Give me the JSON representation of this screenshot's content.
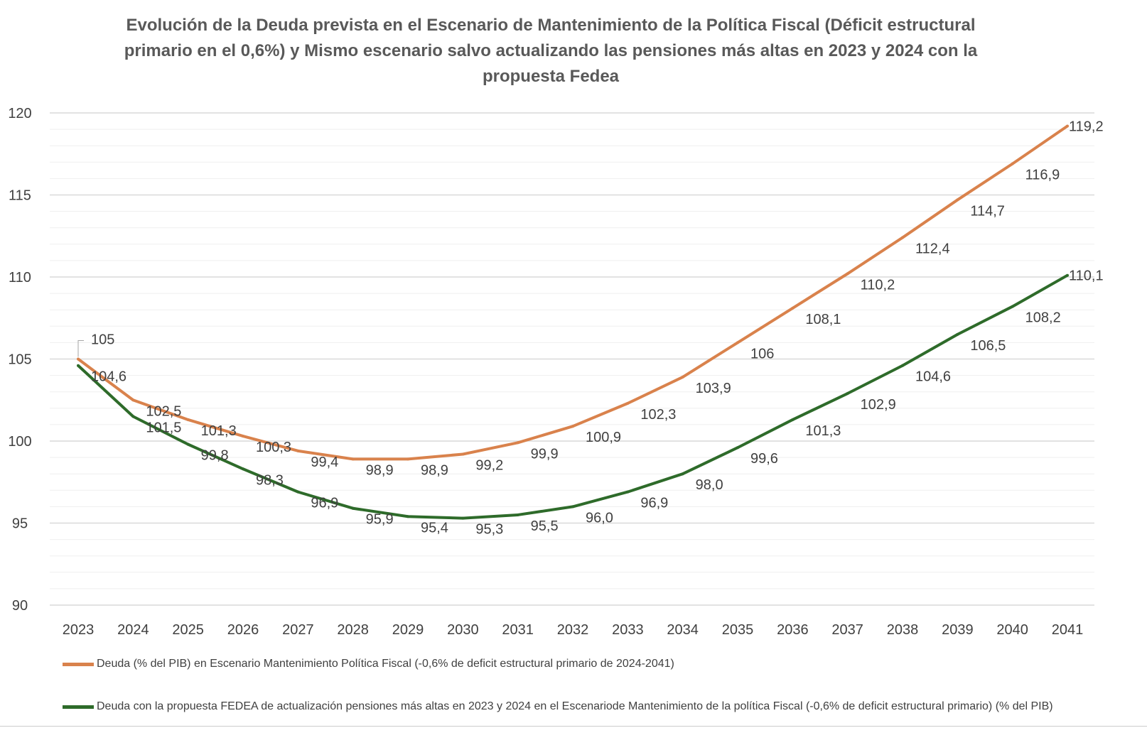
{
  "chart_data": {
    "type": "line",
    "title": "Evolución de la Deuda prevista en el Escenario de Mantenimiento de la Política Fiscal (Déficit estructural primario en el 0,6%) y Mismo escenario salvo actualizando las pensiones más altas en 2023 y 2024 con la propuesta Fedea",
    "xlabel": "",
    "ylabel": "",
    "ylim": [
      90,
      120
    ],
    "yticks": [
      90,
      95,
      100,
      105,
      110,
      115,
      120
    ],
    "grid": true,
    "legend_position": "bottom",
    "categories": [
      "2023",
      "2024",
      "2025",
      "2026",
      "2027",
      "2028",
      "2029",
      "2030",
      "2031",
      "2032",
      "2033",
      "2034",
      "2035",
      "2036",
      "2037",
      "2038",
      "2039",
      "2040",
      "2041"
    ],
    "series": [
      {
        "name": "Deuda (% del PIB) en Escenario Mantenimiento Política Fiscal  (-0,6% de deficit estructural primario de 2024-2041)",
        "color": "#D9824C",
        "values": [
          105,
          102.5,
          101.3,
          100.3,
          99.4,
          98.9,
          98.9,
          99.2,
          99.9,
          100.9,
          102.3,
          103.9,
          106,
          108.1,
          110.2,
          112.4,
          114.7,
          116.9,
          119.2
        ],
        "labels": [
          "105",
          "102,5",
          "101,3",
          "100,3",
          "99,4",
          "98,9",
          "98,9",
          "99,2",
          "99,9",
          "100,9",
          "102,3",
          "103,9",
          "106",
          "108,1",
          "110,2",
          "112,4",
          "114,7",
          "116,9",
          "119,2"
        ]
      },
      {
        "name": "Deuda con la propuesta FEDEA de actualización pensiones más altas en 2023 y 2024 en el Escenariode Mantenimiento de la política Fiscal (-0,6% de deficit estructural primario) (% del PIB)",
        "color": "#2E6B2A",
        "values": [
          104.6,
          101.5,
          99.8,
          98.3,
          96.9,
          95.9,
          95.4,
          95.3,
          95.5,
          96.0,
          96.9,
          98.0,
          99.6,
          101.3,
          102.9,
          104.6,
          106.5,
          108.2,
          110.1
        ],
        "labels": [
          "104,6",
          "101,5",
          "99,8",
          "98,3",
          "96,9",
          "95,9",
          "95,4",
          "95,3",
          "95,5",
          "96,0",
          "96,9",
          "98,0",
          "99,6",
          "101,3",
          "102,9",
          "104,6",
          "106,5",
          "108,2",
          "110,1"
        ]
      }
    ]
  }
}
